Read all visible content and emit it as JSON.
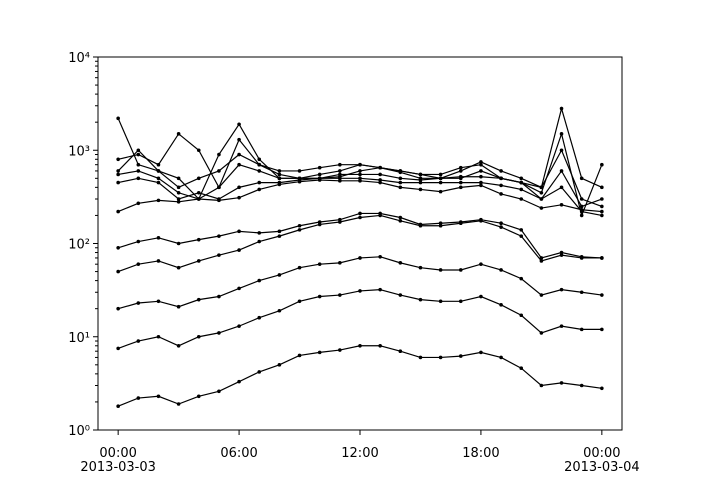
{
  "chart_data": {
    "type": "line",
    "log_y": true,
    "grid": false,
    "marker": "dot",
    "x": [
      0,
      1,
      2,
      3,
      4,
      5,
      6,
      7,
      8,
      9,
      10,
      11,
      12,
      13,
      14,
      15,
      16,
      17,
      18,
      19,
      20,
      21,
      22,
      23,
      24
    ],
    "xlim": [
      -1,
      25
    ],
    "xticks": [
      {
        "value": 0,
        "label": "00:00"
      },
      {
        "value": 6,
        "label": "06:00"
      },
      {
        "value": 12,
        "label": "12:00"
      },
      {
        "value": 18,
        "label": "18:00"
      },
      {
        "value": 24,
        "label": "00:00"
      }
    ],
    "xtick_dates": [
      {
        "value": 0,
        "label": "2013-03-03"
      },
      {
        "value": 24,
        "label": "2013-03-04"
      }
    ],
    "ylim": [
      1,
      10000
    ],
    "yticks": [
      {
        "value": 1,
        "label": "10⁰"
      },
      {
        "value": 10,
        "label": "10¹"
      },
      {
        "value": 100,
        "label": "10²"
      },
      {
        "value": 1000,
        "label": "10³"
      },
      {
        "value": 10000,
        "label": "10⁴"
      }
    ],
    "series": [
      {
        "color": "#000000",
        "values": [
          1.8,
          2.2,
          2.3,
          1.9,
          2.3,
          2.6,
          3.3,
          4.2,
          5.0,
          6.3,
          6.8,
          7.2,
          8.0,
          8.0,
          7.0,
          6.0,
          6.0,
          6.2,
          6.8,
          6.0,
          4.6,
          3.0,
          3.2,
          3.0,
          2.8
        ]
      },
      {
        "color": "#000000",
        "values": [
          7.5,
          9,
          10,
          8,
          10,
          11,
          13,
          16,
          19,
          24,
          27,
          28,
          31,
          32,
          28,
          25,
          24,
          24,
          27,
          22,
          17,
          11,
          13,
          12,
          12
        ]
      },
      {
        "color": "#000000",
        "values": [
          20,
          23,
          24,
          21,
          25,
          27,
          33,
          40,
          46,
          55,
          60,
          62,
          70,
          72,
          62,
          55,
          52,
          52,
          60,
          52,
          42,
          28,
          32,
          30,
          28
        ]
      },
      {
        "color": "#000000",
        "values": [
          50,
          60,
          65,
          55,
          65,
          75,
          85,
          105,
          120,
          140,
          160,
          170,
          190,
          200,
          175,
          155,
          155,
          165,
          175,
          150,
          120,
          65,
          75,
          70,
          70
        ]
      },
      {
        "color": "#000000",
        "values": [
          90,
          105,
          115,
          100,
          110,
          120,
          135,
          130,
          135,
          155,
          170,
          180,
          210,
          210,
          190,
          160,
          165,
          170,
          180,
          165,
          140,
          70,
          80,
          72,
          70
        ]
      },
      {
        "color": "#000000",
        "values": [
          220,
          270,
          290,
          280,
          300,
          290,
          310,
          380,
          430,
          460,
          480,
          470,
          470,
          450,
          400,
          380,
          360,
          400,
          420,
          340,
          300,
          240,
          260,
          230,
          220
        ]
      },
      {
        "color": "#000000",
        "values": [
          2200,
          700,
          600,
          500,
          300,
          900,
          1900,
          800,
          500,
          500,
          500,
          520,
          600,
          650,
          580,
          500,
          500,
          520,
          520,
          500,
          450,
          400,
          2800,
          500,
          400
        ]
      },
      {
        "color": "#000000",
        "values": [
          800,
          900,
          700,
          1500,
          1000,
          400,
          1300,
          700,
          600,
          600,
          650,
          700,
          700,
          650,
          600,
          550,
          500,
          600,
          750,
          600,
          500,
          400,
          1000,
          300,
          250
        ]
      },
      {
        "color": "#000000",
        "values": [
          600,
          1000,
          600,
          400,
          500,
          600,
          900,
          700,
          550,
          500,
          550,
          600,
          700,
          650,
          600,
          550,
          550,
          650,
          700,
          500,
          450,
          350,
          1500,
          200,
          700
        ]
      },
      {
        "color": "#000000",
        "values": [
          550,
          600,
          500,
          350,
          300,
          400,
          700,
          600,
          500,
          500,
          500,
          550,
          550,
          550,
          500,
          480,
          500,
          500,
          600,
          500,
          450,
          300,
          600,
          250,
          300
        ]
      },
      {
        "color": "#000000",
        "values": [
          450,
          500,
          450,
          300,
          350,
          300,
          400,
          450,
          450,
          480,
          500,
          500,
          500,
          480,
          450,
          450,
          450,
          450,
          450,
          420,
          380,
          300,
          400,
          220,
          200
        ]
      }
    ]
  }
}
